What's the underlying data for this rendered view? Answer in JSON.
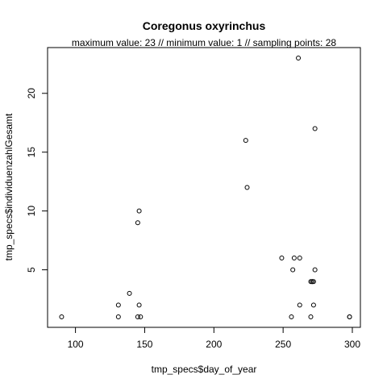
{
  "chart_data": {
    "type": "scatter",
    "title": "Coregonus oxyrinchus",
    "subtitle": "maximum value: 23  //  minimum value: 1  // sampling points: 28",
    "xlabel": "tmp_specs$day_of_year",
    "ylabel": "tmp_specs$individuenzahlGesamt",
    "x_ticks": [
      100,
      150,
      200,
      250,
      300
    ],
    "y_ticks": [
      5,
      10,
      15,
      20
    ],
    "xlim": [
      88,
      300
    ],
    "ylim": [
      1,
      23
    ],
    "grid": false,
    "legend": "none",
    "points": [
      {
        "x": 90,
        "y": 1
      },
      {
        "x": 131,
        "y": 1
      },
      {
        "x": 131,
        "y": 2
      },
      {
        "x": 139,
        "y": 3
      },
      {
        "x": 145,
        "y": 1
      },
      {
        "x": 145,
        "y": 9
      },
      {
        "x": 146,
        "y": 10
      },
      {
        "x": 146,
        "y": 2
      },
      {
        "x": 147,
        "y": 1
      },
      {
        "x": 223,
        "y": 16
      },
      {
        "x": 224,
        "y": 12
      },
      {
        "x": 249,
        "y": 6
      },
      {
        "x": 256,
        "y": 1
      },
      {
        "x": 257,
        "y": 5
      },
      {
        "x": 258,
        "y": 6
      },
      {
        "x": 261,
        "y": 23
      },
      {
        "x": 262,
        "y": 6
      },
      {
        "x": 262,
        "y": 2
      },
      {
        "x": 270,
        "y": 4
      },
      {
        "x": 270,
        "y": 1
      },
      {
        "x": 271,
        "y": 4
      },
      {
        "x": 271,
        "y": 4
      },
      {
        "x": 272,
        "y": 2
      },
      {
        "x": 272,
        "y": 4
      },
      {
        "x": 273,
        "y": 17
      },
      {
        "x": 273,
        "y": 5
      },
      {
        "x": 298,
        "y": 1
      },
      {
        "x": 298,
        "y": 1
      }
    ]
  }
}
